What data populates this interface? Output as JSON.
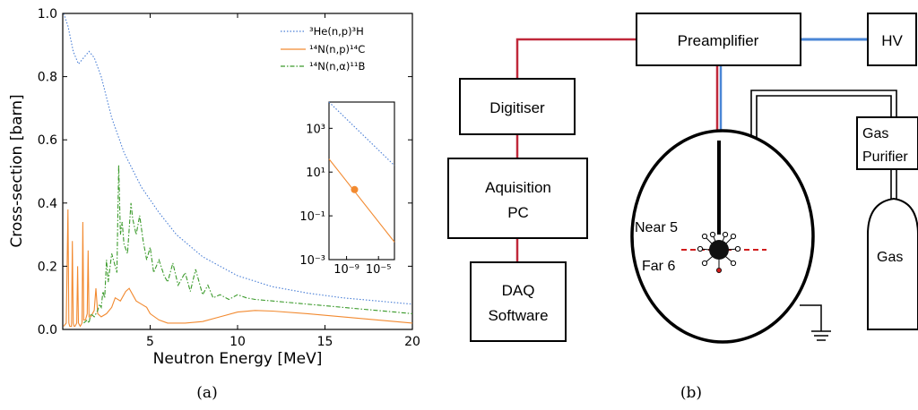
{
  "panel_a": {
    "caption": "(a)",
    "chart_data": {
      "type": "line",
      "xlabel": "Neutron Energy [MeV]",
      "ylabel": "Cross-section [barn]",
      "xlim": [
        0,
        20
      ],
      "ylim": [
        0,
        1.0
      ],
      "xticks": [
        "5",
        "10",
        "15",
        "20"
      ],
      "yticks": [
        "0.0",
        "0.2",
        "0.4",
        "0.6",
        "0.8",
        "1.0"
      ],
      "legend_position": "top-right",
      "series": [
        {
          "name": "³He(n,p)³H",
          "style": "dotted",
          "color": "#4a7fd6",
          "x": [
            0.05,
            0.3,
            0.6,
            0.9,
            1.2,
            1.5,
            1.8,
            2.2,
            2.8,
            3.5,
            4.5,
            5.5,
            6.5,
            8,
            10,
            12,
            14,
            16,
            18,
            20
          ],
          "y": [
            1.0,
            0.96,
            0.88,
            0.84,
            0.86,
            0.88,
            0.86,
            0.8,
            0.67,
            0.56,
            0.45,
            0.37,
            0.3,
            0.23,
            0.17,
            0.135,
            0.115,
            0.1,
            0.09,
            0.08
          ]
        },
        {
          "name": "¹⁴N(n,p)¹⁴C",
          "style": "solid",
          "color": "#f28a30",
          "x": [
            0.05,
            0.2,
            0.3,
            0.35,
            0.4,
            0.5,
            0.55,
            0.6,
            0.65,
            0.7,
            0.8,
            0.85,
            0.9,
            1.0,
            1.1,
            1.15,
            1.2,
            1.3,
            1.4,
            1.45,
            1.5,
            1.6,
            1.8,
            1.9,
            2.0,
            2.2,
            2.5,
            2.8,
            3.0,
            3.3,
            3.6,
            3.8,
            4.0,
            4.2,
            4.5,
            4.8,
            5.0,
            5.5,
            6,
            7,
            8,
            9,
            10,
            11,
            12,
            14,
            16,
            18,
            20
          ],
          "y": [
            0.01,
            0.02,
            0.38,
            0.02,
            0.01,
            0.01,
            0.28,
            0.02,
            0.01,
            0.01,
            0.02,
            0.2,
            0.02,
            0.01,
            0.02,
            0.34,
            0.03,
            0.03,
            0.05,
            0.25,
            0.04,
            0.04,
            0.06,
            0.13,
            0.05,
            0.04,
            0.05,
            0.07,
            0.1,
            0.09,
            0.12,
            0.13,
            0.11,
            0.09,
            0.08,
            0.07,
            0.05,
            0.03,
            0.02,
            0.02,
            0.025,
            0.04,
            0.055,
            0.06,
            0.058,
            0.05,
            0.04,
            0.03,
            0.02
          ]
        },
        {
          "name": "¹⁴N(n,α)¹¹B",
          "style": "dashdot",
          "color": "#3a9a2a",
          "x": [
            1.2,
            1.4,
            1.5,
            1.6,
            1.8,
            2.0,
            2.1,
            2.2,
            2.3,
            2.4,
            2.5,
            2.6,
            2.8,
            3.0,
            3.1,
            3.2,
            3.3,
            3.4,
            3.5,
            3.7,
            3.9,
            4.0,
            4.2,
            4.4,
            4.6,
            4.8,
            5.0,
            5.2,
            5.5,
            5.8,
            6.0,
            6.3,
            6.6,
            7.0,
            7.3,
            7.6,
            8.0,
            8.3,
            8.6,
            9.0,
            9.5,
            10,
            10.5,
            11,
            12,
            13,
            14,
            15,
            16,
            17,
            18,
            19,
            20
          ],
          "y": [
            0.02,
            0.03,
            0.02,
            0.05,
            0.04,
            0.06,
            0.08,
            0.07,
            0.12,
            0.1,
            0.22,
            0.15,
            0.24,
            0.2,
            0.18,
            0.52,
            0.3,
            0.34,
            0.27,
            0.24,
            0.4,
            0.35,
            0.3,
            0.36,
            0.28,
            0.22,
            0.26,
            0.18,
            0.22,
            0.17,
            0.15,
            0.21,
            0.14,
            0.18,
            0.12,
            0.19,
            0.11,
            0.14,
            0.1,
            0.11,
            0.095,
            0.11,
            0.1,
            0.095,
            0.09,
            0.085,
            0.08,
            0.075,
            0.07,
            0.065,
            0.06,
            0.055,
            0.05
          ]
        }
      ],
      "inset": {
        "type": "line",
        "log_x": true,
        "log_y": true,
        "xticks": [
          "10⁻⁹",
          "10⁻⁵"
        ],
        "yticks": [
          "10⁻³",
          "10⁻¹",
          "10¹",
          "10³"
        ],
        "series": [
          {
            "style": "dotted",
            "color": "#4a7fd6",
            "log_x": [
              -11.2,
              -3
            ],
            "log_y": [
              4.2,
              1.3
            ]
          },
          {
            "style": "solid",
            "color": "#f28a30",
            "log_x": [
              -11.2,
              -3
            ],
            "log_y": [
              1.6,
              -2.2
            ]
          }
        ],
        "point": {
          "log_x": [
            -8.0
          ],
          "log_y": [
            0.2
          ]
        }
      }
    }
  },
  "panel_b": {
    "caption": "(b)",
    "labels": {
      "preamplifier": "Preamplifier",
      "hv": "HV",
      "digitiser": "Digitiser",
      "aquisition_line1": "Aquisition",
      "aquisition_line2": "PC",
      "daq_line1": "DAQ",
      "daq_line2": "Software",
      "gas_purifier_line1": "Gas",
      "gas_purifier_line2": "Purifier",
      "gas": "Gas",
      "near": "Near 5",
      "far": "Far 6"
    },
    "colors": {
      "signal": "#c0283a",
      "hv": "#4a86d6",
      "target": "#d01c1c"
    }
  }
}
